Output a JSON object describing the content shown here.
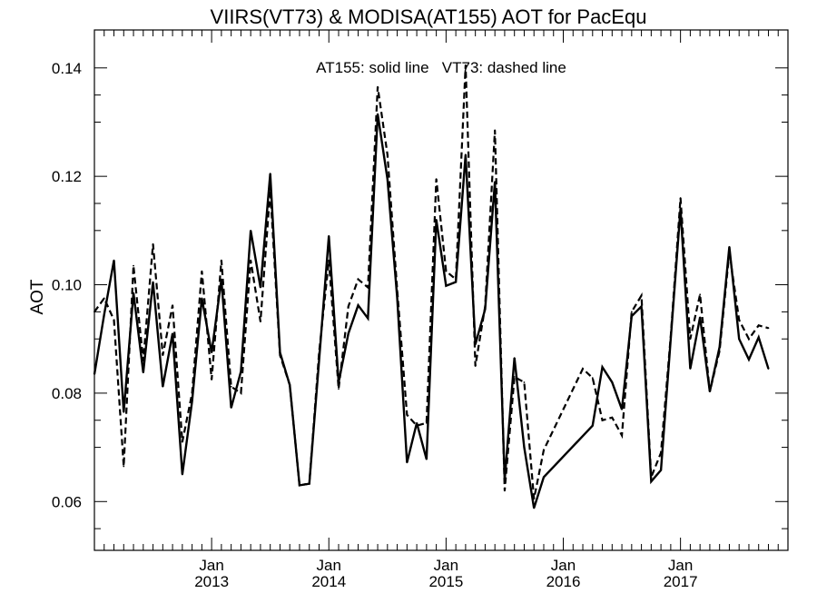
{
  "chart_data": {
    "type": "line",
    "title": "VIIRS(VT73) & MODISA(AT155)  AOT for PacEqu",
    "ylabel": "AOT",
    "xlabel": "",
    "annotation": "AT155: solid line   VT73: dashed line",
    "ylim": [
      0.051,
      0.147
    ],
    "xlim": [
      "2012-01-01",
      "2017-12-01"
    ],
    "grid": false,
    "y_ticks": [
      {
        "value": 0.06,
        "label": "0.06"
      },
      {
        "value": 0.08,
        "label": "0.08"
      },
      {
        "value": 0.1,
        "label": "0.10"
      },
      {
        "value": 0.12,
        "label": "0.12"
      },
      {
        "value": 0.14,
        "label": "0.14"
      }
    ],
    "x_ticks": [
      {
        "date": "2013-01",
        "month": "Jan",
        "year": "2013"
      },
      {
        "date": "2014-01",
        "month": "Jan",
        "year": "2014"
      },
      {
        "date": "2015-01",
        "month": "Jan",
        "year": "2015"
      },
      {
        "date": "2016-01",
        "month": "Jan",
        "year": "2016"
      },
      {
        "date": "2017-01",
        "month": "Jan",
        "year": "2017"
      }
    ],
    "series": [
      {
        "name": "AT155",
        "style": "solid",
        "color": "#000000",
        "points": [
          [
            "2012-01",
            0.0835
          ],
          [
            "2012-02",
            0.0945
          ],
          [
            "2012-03",
            0.1045
          ],
          [
            "2012-04",
            0.0765
          ],
          [
            "2012-05",
            0.0985
          ],
          [
            "2012-06",
            0.0838
          ],
          [
            "2012-07",
            0.1005
          ],
          [
            "2012-08",
            0.0812
          ],
          [
            "2012-09",
            0.091
          ],
          [
            "2012-10",
            0.065
          ],
          [
            "2012-11",
            0.0785
          ],
          [
            "2012-12",
            0.0975
          ],
          [
            "2013-01",
            0.0875
          ],
          [
            "2013-02",
            0.101
          ],
          [
            "2013-03",
            0.0773
          ],
          [
            "2013-04",
            0.084
          ],
          [
            "2013-05",
            0.11
          ],
          [
            "2013-06",
            0.0995
          ],
          [
            "2013-07",
            0.1205
          ],
          [
            "2013-08",
            0.0875
          ],
          [
            "2013-09",
            0.0815
          ],
          [
            "2013-10",
            0.063
          ],
          [
            "2013-11",
            0.0633
          ],
          [
            "2013-12",
            0.086
          ],
          [
            "2014-01",
            0.109
          ],
          [
            "2014-02",
            0.082
          ],
          [
            "2014-03",
            0.091
          ],
          [
            "2014-04",
            0.0962
          ],
          [
            "2014-05",
            0.0938
          ],
          [
            "2014-06",
            0.1315
          ],
          [
            "2014-07",
            0.1195
          ],
          [
            "2014-08",
            0.0975
          ],
          [
            "2014-09",
            0.0672
          ],
          [
            "2014-10",
            0.0745
          ],
          [
            "2014-11",
            0.0678
          ],
          [
            "2014-12",
            0.112
          ],
          [
            "2015-01",
            0.0998
          ],
          [
            "2015-02",
            0.1005
          ],
          [
            "2015-03",
            0.124
          ],
          [
            "2015-04",
            0.089
          ],
          [
            "2015-05",
            0.0955
          ],
          [
            "2015-06",
            0.119
          ],
          [
            "2015-07",
            0.064
          ],
          [
            "2015-08",
            0.0865
          ],
          [
            "2015-09",
            0.07
          ],
          [
            "2015-10",
            0.0588
          ],
          [
            "2015-11",
            0.0645
          ],
          [
            "2016-04",
            0.074
          ],
          [
            "2016-05",
            0.0848
          ],
          [
            "2016-06",
            0.082
          ],
          [
            "2016-07",
            0.077
          ],
          [
            "2016-08",
            0.0942
          ],
          [
            "2016-09",
            0.096
          ],
          [
            "2016-10",
            0.0637
          ],
          [
            "2016-11",
            0.0658
          ],
          [
            "2016-12",
            0.09
          ],
          [
            "2017-01",
            0.114
          ],
          [
            "2017-02",
            0.0845
          ],
          [
            "2017-03",
            0.094
          ],
          [
            "2017-04",
            0.0803
          ],
          [
            "2017-05",
            0.0885
          ],
          [
            "2017-06",
            0.107
          ],
          [
            "2017-07",
            0.09
          ],
          [
            "2017-08",
            0.0862
          ],
          [
            "2017-09",
            0.0903
          ],
          [
            "2017-10",
            0.0845
          ]
        ]
      },
      {
        "name": "VT73",
        "style": "dashed",
        "color": "#000000",
        "points": [
          [
            "2012-01",
            0.095
          ],
          [
            "2012-02",
            0.0975
          ],
          [
            "2012-03",
            0.0935
          ],
          [
            "2012-04",
            0.0665
          ],
          [
            "2012-05",
            0.1035
          ],
          [
            "2012-06",
            0.086
          ],
          [
            "2012-07",
            0.1075
          ],
          [
            "2012-08",
            0.087
          ],
          [
            "2012-09",
            0.0962
          ],
          [
            "2012-10",
            0.071
          ],
          [
            "2012-11",
            0.08
          ],
          [
            "2012-12",
            0.1025
          ],
          [
            "2013-01",
            0.0825
          ],
          [
            "2013-02",
            0.1045
          ],
          [
            "2013-03",
            0.0812
          ],
          [
            "2013-04",
            0.08
          ],
          [
            "2013-05",
            0.1045
          ],
          [
            "2013-06",
            0.0932
          ],
          [
            "2013-07",
            0.1175
          ],
          [
            "2013-08",
            0.087
          ],
          [
            "2013-09",
            0.0815
          ],
          [
            "2013-10",
            0.063
          ],
          [
            "2013-11",
            0.0633
          ],
          [
            "2013-12",
            0.0875
          ],
          [
            "2014-01",
            0.1045
          ],
          [
            "2014-02",
            0.0808
          ],
          [
            "2014-03",
            0.096
          ],
          [
            "2014-04",
            0.101
          ],
          [
            "2014-05",
            0.0995
          ],
          [
            "2014-06",
            0.1365
          ],
          [
            "2014-07",
            0.124
          ],
          [
            "2014-08",
            0.099
          ],
          [
            "2014-09",
            0.076
          ],
          [
            "2014-10",
            0.074
          ],
          [
            "2014-11",
            0.0745
          ],
          [
            "2014-12",
            0.1195
          ],
          [
            "2015-01",
            0.1025
          ],
          [
            "2015-02",
            0.101
          ],
          [
            "2015-03",
            0.1405
          ],
          [
            "2015-04",
            0.085
          ],
          [
            "2015-05",
            0.096
          ],
          [
            "2015-06",
            0.1285
          ],
          [
            "2015-07",
            0.062
          ],
          [
            "2015-08",
            0.083
          ],
          [
            "2015-09",
            0.082
          ],
          [
            "2015-10",
            0.0605
          ],
          [
            "2015-11",
            0.0695
          ],
          [
            "2016-03",
            0.0845
          ],
          [
            "2016-04",
            0.0828
          ],
          [
            "2016-05",
            0.075
          ],
          [
            "2016-06",
            0.0755
          ],
          [
            "2016-07",
            0.0722
          ],
          [
            "2016-08",
            0.095
          ],
          [
            "2016-09",
            0.098
          ],
          [
            "2016-10",
            0.0645
          ],
          [
            "2016-11",
            0.069
          ],
          [
            "2016-12",
            0.0905
          ],
          [
            "2017-01",
            0.116
          ],
          [
            "2017-02",
            0.09
          ],
          [
            "2017-03",
            0.0982
          ],
          [
            "2017-04",
            0.0803
          ],
          [
            "2017-05",
            0.0878
          ],
          [
            "2017-06",
            0.106
          ],
          [
            "2017-07",
            0.0935
          ],
          [
            "2017-08",
            0.09
          ],
          [
            "2017-09",
            0.0925
          ],
          [
            "2017-10",
            0.092
          ]
        ]
      }
    ]
  }
}
